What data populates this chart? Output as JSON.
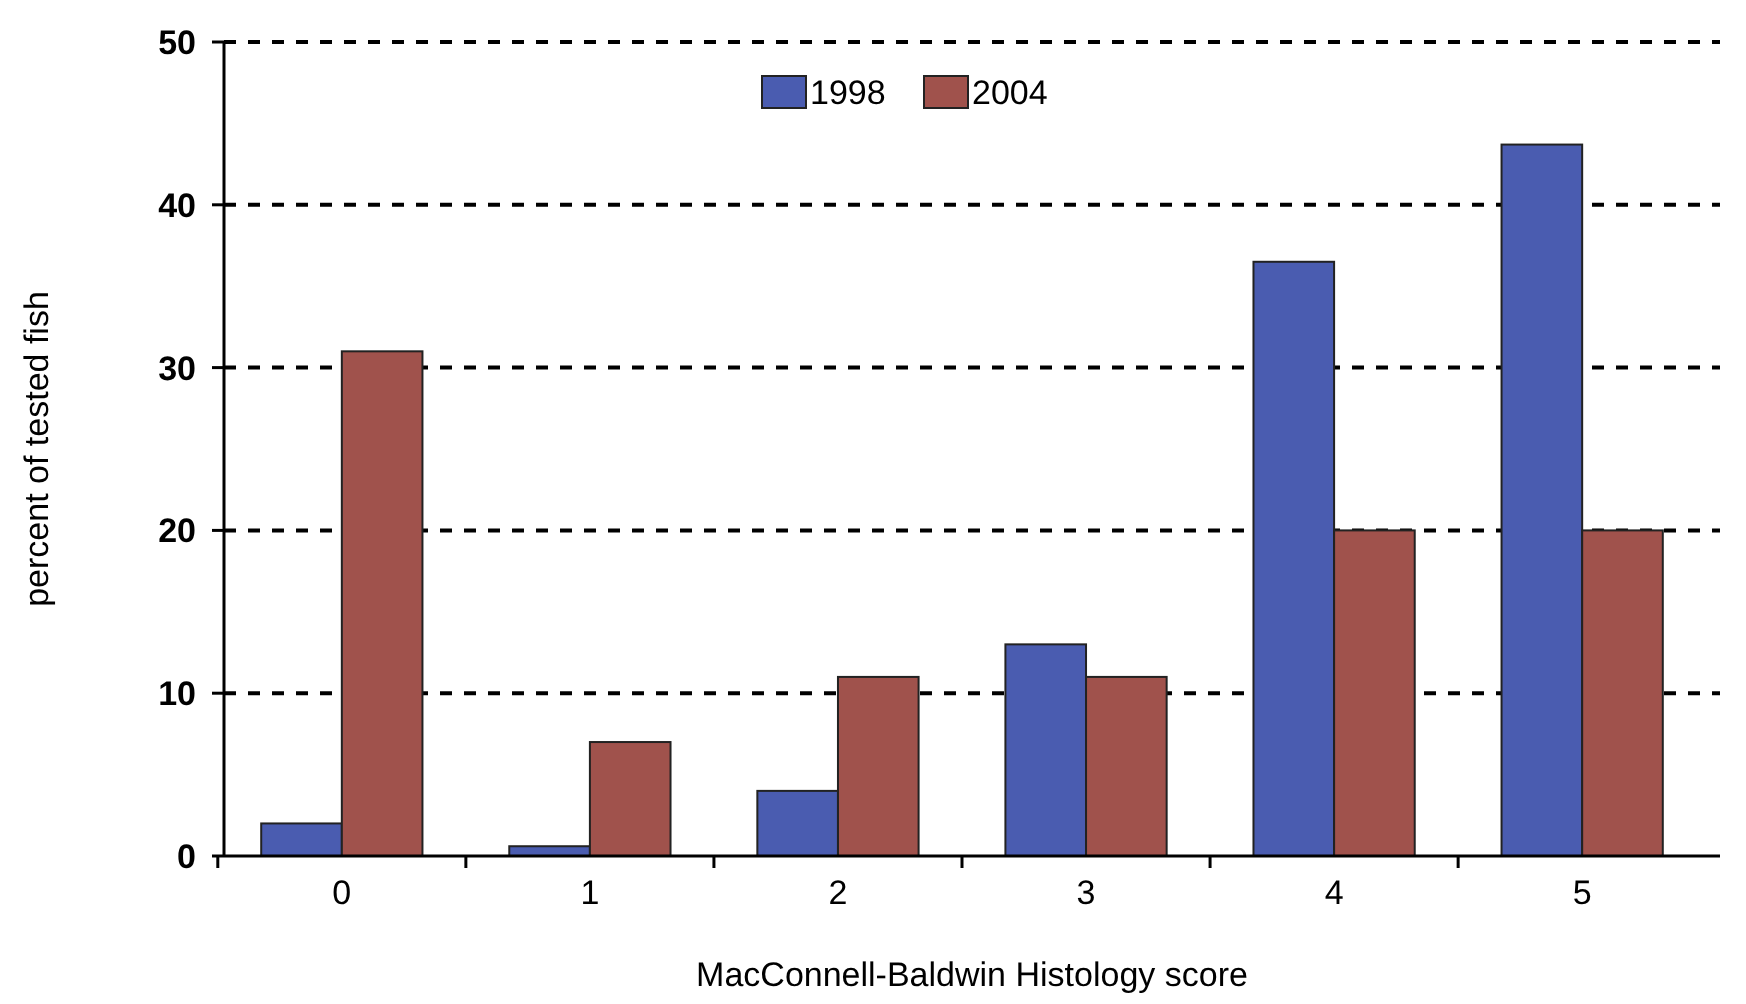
{
  "chart_data": {
    "type": "bar",
    "xlabel": "MacConnell-Baldwin Histology score",
    "ylabel": "percent of tested fish",
    "categories": [
      "0",
      "1",
      "2",
      "3",
      "4",
      "5"
    ],
    "series": [
      {
        "name": "1998",
        "color": "#4a5cb0",
        "values": [
          2,
          0.6,
          4,
          13,
          36.5,
          43.7
        ]
      },
      {
        "name": "2004",
        "color": "#a0524c",
        "values": [
          31,
          7,
          11,
          11,
          20,
          20
        ]
      }
    ],
    "ylim": [
      0,
      50
    ],
    "yticks": [
      0,
      10,
      20,
      30,
      40,
      50
    ],
    "grid": "y",
    "legend": "top"
  }
}
